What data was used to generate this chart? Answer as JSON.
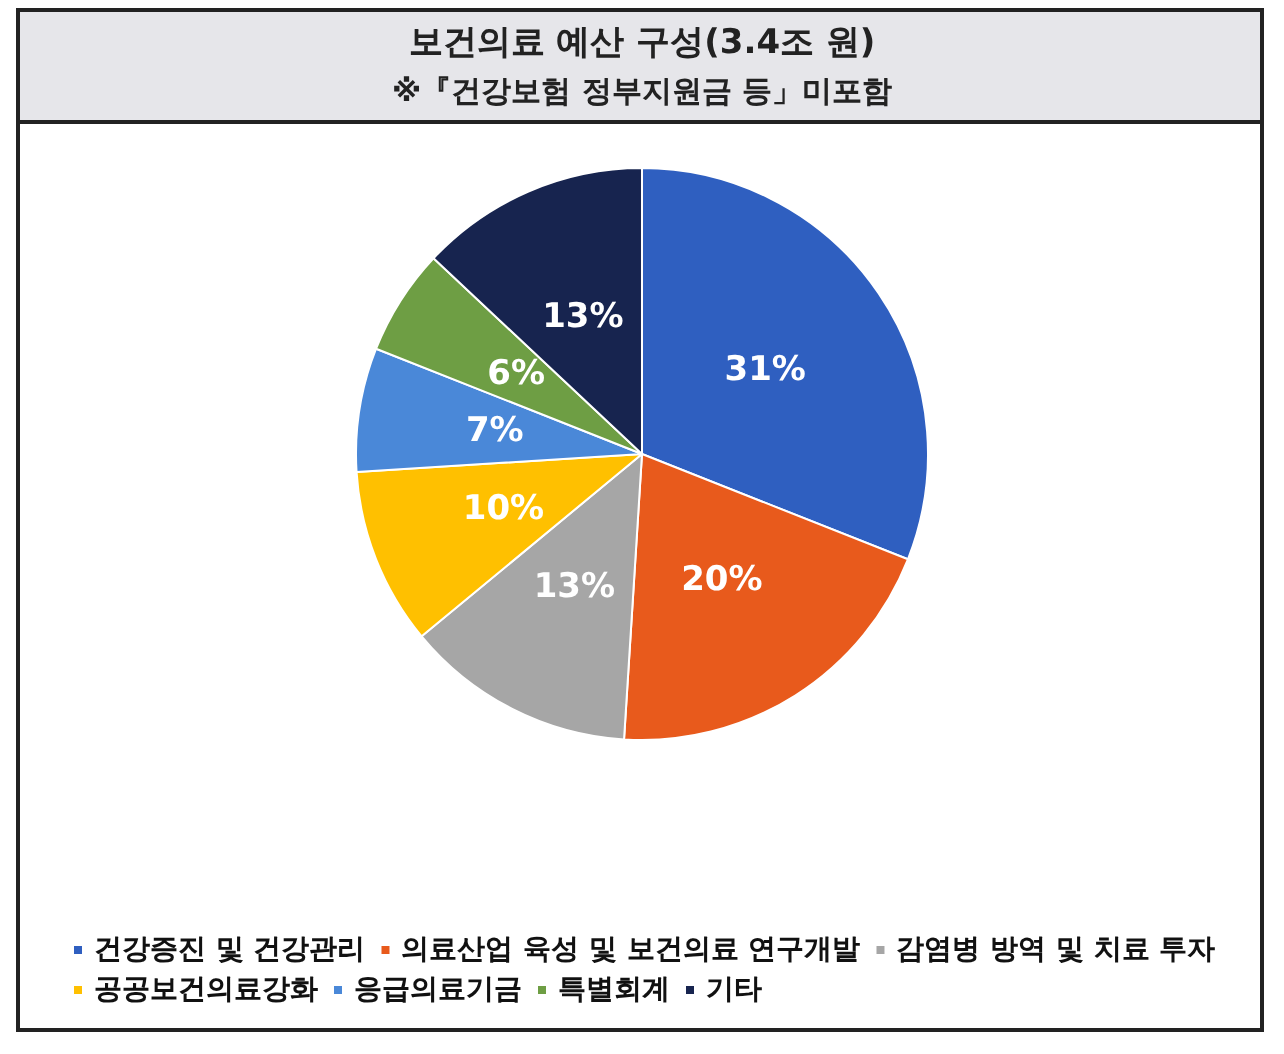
{
  "chart_data": {
    "type": "pie",
    "title": "보건의료 예산 구성(3.4조 원)",
    "subtitle": "※『건강보험 정부지원금 등」미포함",
    "categories": [
      "건강증진 및 건강관리",
      "의료산업 육성 및 보건의료 연구개발",
      "감염병 방역 및 치료 투자",
      "공공보건의료강화",
      "응급의료기금",
      "특별회계",
      "기타"
    ],
    "values": [
      31,
      20,
      13,
      10,
      7,
      6,
      13
    ],
    "value_labels": [
      "31%",
      "20%",
      "13%",
      "10%",
      "7%",
      "6%",
      "13%"
    ],
    "colors": [
      "#2f5fc0",
      "#e85a1c",
      "#a6a6a6",
      "#ffc000",
      "#4a88d8",
      "#6e9e44",
      "#17244f"
    ],
    "legend": "bottom"
  }
}
